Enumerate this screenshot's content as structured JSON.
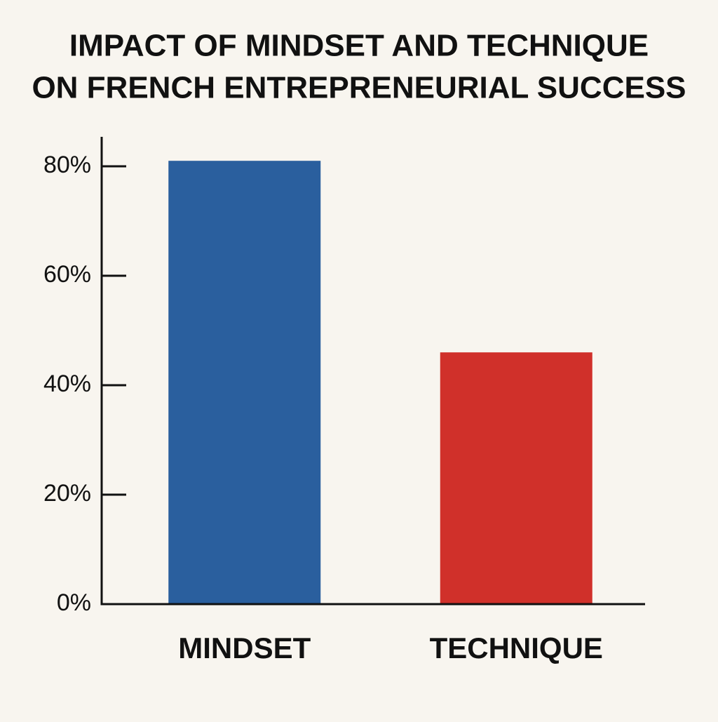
{
  "chart_data": {
    "type": "bar",
    "title": [
      "IMPACT OF MINDSET AND TECHNIQUE",
      "ON FRENCH ENTREPRENEURIAL SUCCESS"
    ],
    "categories": [
      "MINDSET",
      "TECHNIQUE"
    ],
    "values": [
      81,
      46
    ],
    "colors": [
      "#2a5f9e",
      "#d0302a"
    ],
    "ylim": [
      0,
      85
    ],
    "yticks": [
      {
        "value": 0,
        "label": "0%"
      },
      {
        "value": 20,
        "label": "20%"
      },
      {
        "value": 40,
        "label": "40%"
      },
      {
        "value": 60,
        "label": "60%"
      },
      {
        "value": 80,
        "label": "80%"
      }
    ],
    "grid": false
  }
}
